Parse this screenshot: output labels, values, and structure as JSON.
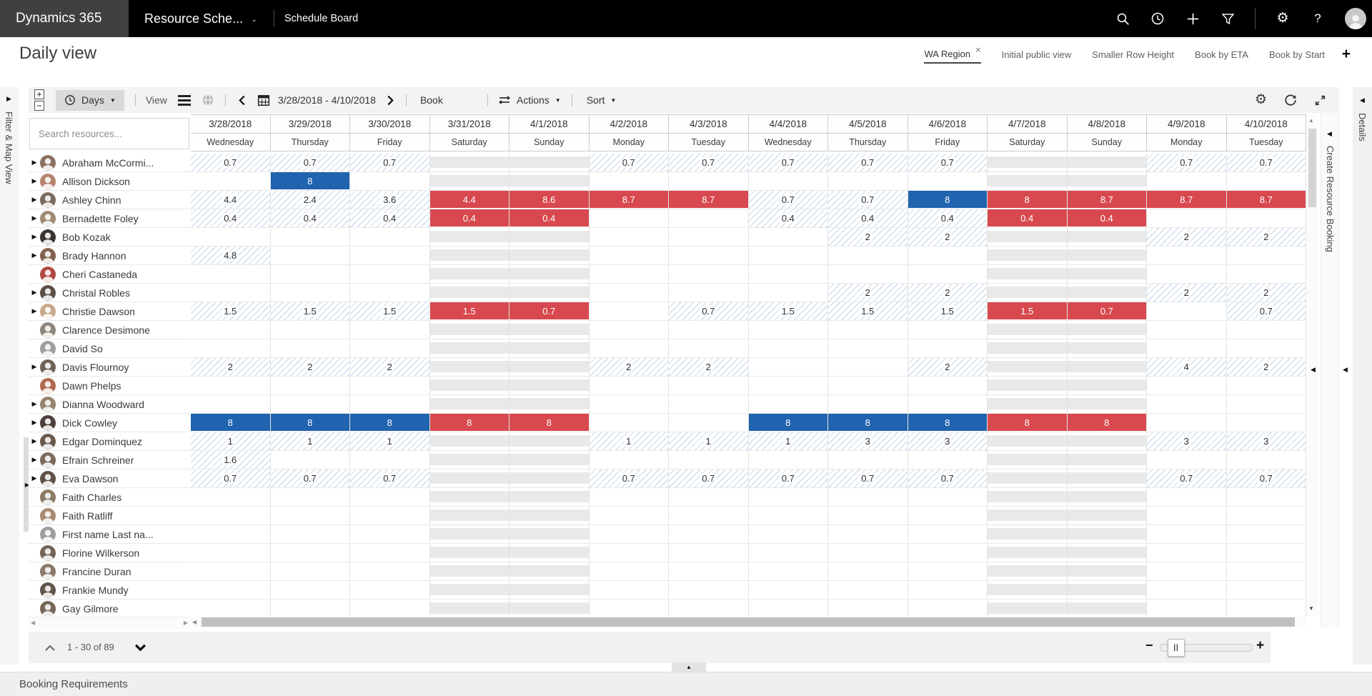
{
  "topnav": {
    "brand": "Dynamics 365",
    "app_name": "Resource Sche...",
    "page_name": "Schedule Board",
    "icons": [
      "search-icon",
      "recent-history-icon",
      "add-icon",
      "filter-icon",
      "settings-gear-icon",
      "help-icon",
      "user-avatar"
    ]
  },
  "title": {
    "text": "Daily view"
  },
  "tabs": [
    {
      "label": "WA Region",
      "active": true,
      "closable": true
    },
    {
      "label": "Initial public view",
      "active": false,
      "closable": false
    },
    {
      "label": "Smaller Row Height",
      "active": false,
      "closable": false
    },
    {
      "label": "Book by ETA",
      "active": false,
      "closable": false
    },
    {
      "label": "Book by Start",
      "active": false,
      "closable": false
    }
  ],
  "add_tab": "+",
  "toolbar": {
    "expand_all": "+",
    "collapse_all": "−",
    "scale": "Days",
    "view_label": "View",
    "date_range": "3/28/2018 - 4/10/2018",
    "book": "Book",
    "actions": "Actions",
    "sort": "Sort",
    "icons": [
      "clock-icon",
      "list-view-icon",
      "map-view-icon",
      "chevron-left-icon",
      "calendar-icon",
      "chevron-right-icon",
      "swap-arrows-icon",
      "settings-gear-icon",
      "refresh-icon",
      "fullscreen-icon"
    ]
  },
  "panels": {
    "filter": "Filter & Map View",
    "create_booking": "Create Resource Booking",
    "details": "Details"
  },
  "search": {
    "placeholder": "Search resources..."
  },
  "columns": [
    {
      "date": "3/28/2018",
      "day": "Wednesday",
      "weekend": false
    },
    {
      "date": "3/29/2018",
      "day": "Thursday",
      "weekend": false
    },
    {
      "date": "3/30/2018",
      "day": "Friday",
      "weekend": false
    },
    {
      "date": "3/31/2018",
      "day": "Saturday",
      "weekend": true
    },
    {
      "date": "4/1/2018",
      "day": "Sunday",
      "weekend": true
    },
    {
      "date": "4/2/2018",
      "day": "Monday",
      "weekend": false
    },
    {
      "date": "4/3/2018",
      "day": "Tuesday",
      "weekend": false
    },
    {
      "date": "4/4/2018",
      "day": "Wednesday",
      "weekend": false
    },
    {
      "date": "4/5/2018",
      "day": "Thursday",
      "weekend": false
    },
    {
      "date": "4/6/2018",
      "day": "Friday",
      "weekend": false
    },
    {
      "date": "4/7/2018",
      "day": "Saturday",
      "weekend": true
    },
    {
      "date": "4/8/2018",
      "day": "Sunday",
      "weekend": true
    },
    {
      "date": "4/9/2018",
      "day": "Monday",
      "weekend": false
    },
    {
      "date": "4/10/2018",
      "day": "Tuesday",
      "weekend": false
    }
  ],
  "resources": [
    {
      "name": "Abraham McCormi...",
      "expand": true,
      "placeholder": false,
      "avatar_color": "#8b7160",
      "cells": [
        "h:0.7",
        "h:0.7",
        "h:0.7",
        "",
        "",
        "h:0.7",
        "h:0.7",
        "h:0.7",
        "h:0.7",
        "h:0.7",
        "",
        "",
        "h:0.7",
        "h:0.7"
      ]
    },
    {
      "name": "Allison Dickson",
      "expand": true,
      "placeholder": false,
      "avatar_color": "#b5836c",
      "cells": [
        "",
        "b:8",
        "",
        "",
        "",
        "",
        "",
        "",
        "",
        "",
        "",
        "",
        "",
        ""
      ]
    },
    {
      "name": "Ashley Chinn",
      "expand": true,
      "placeholder": false,
      "avatar_color": "#7a6a5e",
      "cells": [
        "h:4.4",
        "h:2.4",
        "h:3.6",
        "r:4.4",
        "r:8.6",
        "r:8.7",
        "r:8.7",
        "h:0.7",
        "h:0.7",
        "b:8",
        "r:8",
        "r:8.7",
        "r:8.7",
        "r:8.7"
      ]
    },
    {
      "name": "Bernadette Foley",
      "expand": true,
      "placeholder": false,
      "avatar_color": "#a08a74",
      "cells": [
        "h:0.4",
        "h:0.4",
        "h:0.4",
        "r:0.4",
        "r:0.4",
        "",
        "",
        "h:0.4",
        "h:0.4",
        "h:0.4",
        "r:0.4",
        "r:0.4",
        "",
        ""
      ]
    },
    {
      "name": "Bob Kozak",
      "expand": true,
      "placeholder": false,
      "avatar_color": "#3a3330",
      "cells": [
        "",
        "",
        "",
        "",
        "",
        "",
        "",
        "",
        "h:2",
        "h:2",
        "",
        "",
        "h:2",
        "h:2"
      ]
    },
    {
      "name": "Brady Hannon",
      "expand": true,
      "placeholder": false,
      "avatar_color": "#84624f",
      "cells": [
        "h:4.8",
        "",
        "",
        "",
        "",
        "",
        "",
        "",
        "",
        "",
        "",
        "",
        "",
        ""
      ]
    },
    {
      "name": "Cheri Castaneda",
      "expand": false,
      "placeholder": false,
      "avatar_color": "#b04a42",
      "cells": [
        "",
        "",
        "",
        "",
        "",
        "",
        "",
        "",
        "",
        "",
        "",
        "",
        "",
        ""
      ]
    },
    {
      "name": "Christal Robles",
      "expand": true,
      "placeholder": false,
      "avatar_color": "#5c4f46",
      "cells": [
        "",
        "",
        "",
        "",
        "",
        "",
        "",
        "",
        "h:2",
        "h:2",
        "",
        "",
        "h:2",
        "h:2"
      ]
    },
    {
      "name": "Christie Dawson",
      "expand": true,
      "placeholder": false,
      "avatar_color": "#c9a88a",
      "cells": [
        "h:1.5",
        "h:1.5",
        "h:1.5",
        "r:1.5",
        "r:0.7",
        "",
        "h:0.7",
        "h:1.5",
        "h:1.5",
        "h:1.5",
        "r:1.5",
        "r:0.7",
        "",
        "h:0.7"
      ]
    },
    {
      "name": "Clarence Desimone",
      "expand": false,
      "placeholder": false,
      "avatar_color": "#8f857c",
      "cells": [
        "",
        "",
        "",
        "",
        "",
        "",
        "",
        "",
        "",
        "",
        "",
        "",
        "",
        ""
      ]
    },
    {
      "name": "David So",
      "expand": false,
      "placeholder": true,
      "avatar_color": "#9e9e9e",
      "cells": [
        "",
        "",
        "",
        "",
        "",
        "",
        "",
        "",
        "",
        "",
        "",
        "",
        "",
        ""
      ]
    },
    {
      "name": "Davis Flournoy",
      "expand": true,
      "placeholder": false,
      "avatar_color": "#6e6257",
      "cells": [
        "h:2",
        "h:2",
        "h:2",
        "",
        "",
        "h:2",
        "h:2",
        "",
        "",
        "h:2",
        "",
        "",
        "h:4",
        "h:2"
      ]
    },
    {
      "name": "Dawn Phelps",
      "expand": false,
      "placeholder": false,
      "avatar_color": "#b06a50",
      "cells": [
        "",
        "",
        "",
        "",
        "",
        "",
        "",
        "",
        "",
        "",
        "",
        "",
        "",
        ""
      ]
    },
    {
      "name": "Dianna Woodward",
      "expand": true,
      "placeholder": false,
      "avatar_color": "#97836f",
      "cells": [
        "",
        "",
        "",
        "",
        "",
        "",
        "",
        "",
        "",
        "",
        "",
        "",
        "",
        ""
      ]
    },
    {
      "name": "Dick Cowley",
      "expand": true,
      "placeholder": false,
      "avatar_color": "#4a3f3a",
      "cells": [
        "b:8",
        "b:8",
        "b:8",
        "r:8",
        "r:8",
        "",
        "",
        "b:8",
        "b:8",
        "b:8",
        "r:8",
        "r:8",
        "",
        ""
      ]
    },
    {
      "name": "Edgar Dominquez",
      "expand": true,
      "placeholder": false,
      "avatar_color": "#6b5a4c",
      "cells": [
        "h:1",
        "h:1",
        "h:1",
        "",
        "",
        "h:1",
        "h:1",
        "h:1",
        "h:3",
        "h:3",
        "",
        "",
        "h:3",
        "h:3"
      ]
    },
    {
      "name": "Efrain Schreiner",
      "expand": true,
      "placeholder": false,
      "avatar_color": "#7c6b5b",
      "cells": [
        "h:1.6",
        "",
        "",
        "",
        "",
        "",
        "",
        "",
        "",
        "",
        "",
        "",
        "",
        ""
      ]
    },
    {
      "name": "Eva Dawson",
      "expand": true,
      "placeholder": false,
      "avatar_color": "#5f5048",
      "cells": [
        "h:0.7",
        "h:0.7",
        "h:0.7",
        "",
        "",
        "h:0.7",
        "h:0.7",
        "h:0.7",
        "h:0.7",
        "h:0.7",
        "",
        "",
        "h:0.7",
        "h:0.7"
      ]
    },
    {
      "name": "Faith Charles",
      "expand": false,
      "placeholder": false,
      "avatar_color": "#8d7a66",
      "cells": [
        "",
        "",
        "",
        "",
        "",
        "",
        "",
        "",
        "",
        "",
        "",
        "",
        "",
        ""
      ]
    },
    {
      "name": "Faith Ratliff",
      "expand": false,
      "placeholder": false,
      "avatar_color": "#a78b72",
      "cells": [
        "",
        "",
        "",
        "",
        "",
        "",
        "",
        "",
        "",
        "",
        "",
        "",
        "",
        ""
      ]
    },
    {
      "name": "First name Last na...",
      "expand": false,
      "placeholder": true,
      "avatar_color": "#9e9e9e",
      "cells": [
        "",
        "",
        "",
        "",
        "",
        "",
        "",
        "",
        "",
        "",
        "",
        "",
        "",
        ""
      ]
    },
    {
      "name": "Florine Wilkerson",
      "expand": false,
      "placeholder": false,
      "avatar_color": "#746456",
      "cells": [
        "",
        "",
        "",
        "",
        "",
        "",
        "",
        "",
        "",
        "",
        "",
        "",
        "",
        ""
      ]
    },
    {
      "name": "Francine Duran",
      "expand": false,
      "placeholder": false,
      "avatar_color": "#8a7968",
      "cells": [
        "",
        "",
        "",
        "",
        "",
        "",
        "",
        "",
        "",
        "",
        "",
        "",
        "",
        ""
      ]
    },
    {
      "name": "Frankie Mundy",
      "expand": false,
      "placeholder": false,
      "avatar_color": "#62564b",
      "cells": [
        "",
        "",
        "",
        "",
        "",
        "",
        "",
        "",
        "",
        "",
        "",
        "",
        "",
        ""
      ]
    },
    {
      "name": "Gay Gilmore",
      "expand": false,
      "placeholder": false,
      "avatar_color": "#776655",
      "cells": [
        "",
        "",
        "",
        "",
        "",
        "",
        "",
        "",
        "",
        "",
        "",
        "",
        "",
        ""
      ]
    }
  ],
  "pagination": {
    "range": "1 - 30 of 89"
  },
  "bottom": {
    "label": "Booking Requirements"
  },
  "colors": {
    "booked_blue": "#2063ae",
    "overbooked_red": "#d8494f",
    "hatch_line": "#cfdeee",
    "weekend_gray": "#e9e9e9",
    "topnav_black": "#000000",
    "brand_gray": "#404040"
  },
  "glyphs": {
    "caret_down": "▼",
    "triangle_right": "▶",
    "triangle_left": "◀",
    "triangle_up": "▲",
    "triangle_down": "▼",
    "close": "×",
    "gear": "⚙",
    "help": "?",
    "minus": "−",
    "plus": "+",
    "grip": "||"
  }
}
